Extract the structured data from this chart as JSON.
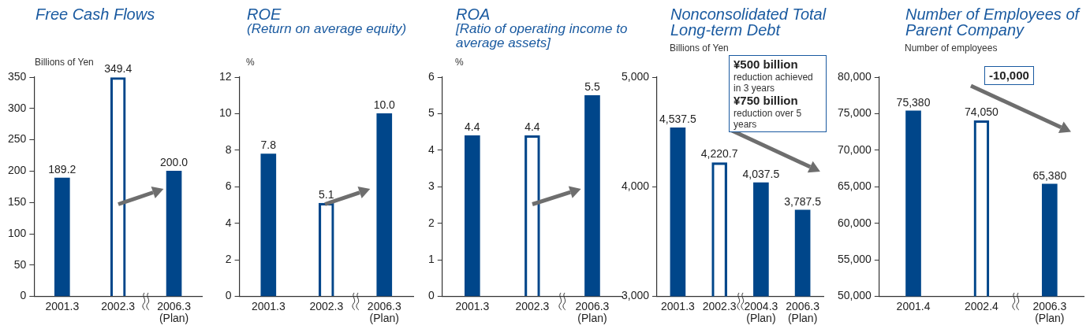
{
  "chart_data": [
    {
      "type": "bar",
      "title": "Free Cash Flows",
      "ylabel": "Billions of Yen",
      "categories": [
        "2001.3",
        "2002.3",
        "2006.3\n(Plan)"
      ],
      "series": [
        {
          "color": "#00468a",
          "values": [
            189.2,
            349.4,
            200.0
          ],
          "value_labels": [
            "189.2",
            "349.4",
            "200.0"
          ]
        }
      ],
      "ylim": [
        0,
        350
      ],
      "yticks": [
        0,
        50,
        100,
        150,
        200,
        250,
        300,
        350
      ]
    },
    {
      "type": "bar",
      "title": "ROE",
      "subtitle": "(Return on average equity)",
      "ylabel": "%",
      "categories": [
        "2001.3",
        "2002.3",
        "2006.3\n(Plan)"
      ],
      "series": [
        {
          "color": "#00468a",
          "values": [
            7.8,
            5.1,
            10.0
          ],
          "value_labels": [
            "7.8",
            "5.1",
            "10.0"
          ]
        }
      ],
      "ylim": [
        0,
        12
      ],
      "yticks": [
        0,
        2,
        4,
        6,
        8,
        10,
        12
      ]
    },
    {
      "type": "bar",
      "title": "ROA",
      "subtitle": "[Ratio of operating income to average assets]",
      "ylabel": "%",
      "categories": [
        "2001.3",
        "2002.3",
        "2006.3\n(Plan)"
      ],
      "series": [
        {
          "color": "#00468a",
          "values": [
            4.4,
            4.4,
            5.5
          ],
          "value_labels": [
            "4.4",
            "4.4",
            "5.5"
          ]
        }
      ],
      "ylim": [
        0,
        6
      ],
      "yticks": [
        0,
        1,
        2,
        3,
        4,
        5,
        6
      ]
    },
    {
      "type": "bar",
      "title": "Nonconsolidated Total Long-term Debt",
      "ylabel": "Billions of Yen",
      "categories": [
        "2001.3",
        "2002.3",
        "2004.3\n(Plan)",
        "2006.3\n(Plan)"
      ],
      "series": [
        {
          "color": "#00468a",
          "values": [
            4537.5,
            4220.7,
            4037.5,
            3787.5
          ],
          "value_labels": [
            "4,537.5",
            "4,220.7",
            "4,037.5",
            "3,787.5"
          ]
        }
      ],
      "ylim": [
        3000,
        5000
      ],
      "yticks": [
        {
          "value": 3000,
          "label": "3,000"
        },
        {
          "value": 4000,
          "label": "4,000"
        },
        {
          "value": 5000,
          "label": "5,000"
        }
      ],
      "annotations": [
        "¥500 billion",
        "reduction achieved in 3 years",
        "¥750 billion",
        "reduction over 5 years"
      ]
    },
    {
      "type": "bar",
      "title": "Number of Employees of Parent Company",
      "ylabel": "Number of employees",
      "categories": [
        "2001.4",
        "2002.4",
        "2006.3\n(Plan)"
      ],
      "series": [
        {
          "color": "#00468a",
          "values": [
            75380,
            74050,
            65380
          ],
          "value_labels": [
            "75,380",
            "74,050",
            "65,380"
          ]
        }
      ],
      "ylim": [
        50000,
        80000
      ],
      "yticks": [
        {
          "value": 50000,
          "label": "50,000"
        },
        {
          "value": 55000,
          "label": "55,000"
        },
        {
          "value": 60000,
          "label": "60,000"
        },
        {
          "value": 65000,
          "label": "65,000"
        },
        {
          "value": 70000,
          "label": "70,000"
        },
        {
          "value": 75000,
          "label": "75,000"
        },
        {
          "value": 80000,
          "label": "80,000"
        }
      ],
      "annotations": [
        "-10,000"
      ]
    }
  ]
}
